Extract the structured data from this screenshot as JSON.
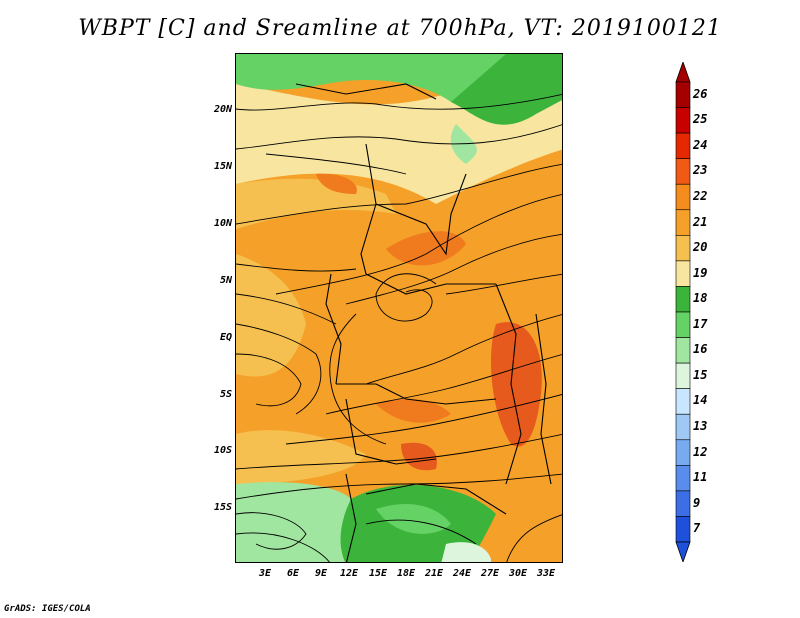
{
  "title": "WBPT [C] and Sreamline at 700hPa, VT: 2019100121",
  "footer": "GrADS: IGES/COLA",
  "lat_labels": [
    "20N",
    "15N",
    "10N",
    "5N",
    "EQ",
    "5S",
    "10S",
    "15S"
  ],
  "lon_labels": [
    "3E",
    "6E",
    "9E",
    "12E",
    "15E",
    "18E",
    "21E",
    "24E",
    "27E",
    "30E",
    "33E"
  ],
  "colorbar": {
    "labels": [
      "26",
      "25",
      "24",
      "23",
      "22",
      "21",
      "20",
      "19",
      "18",
      "17",
      "16",
      "15",
      "14",
      "13",
      "12",
      "11",
      "9",
      "7"
    ],
    "colors": [
      "#a50000",
      "#c80000",
      "#e62800",
      "#f05a14",
      "#f58c1e",
      "#f5a028",
      "#f5c050",
      "#f8e6a0",
      "#3cb43c",
      "#64d264",
      "#a0e6a0",
      "#dcf5dc",
      "#c8e6ff",
      "#a0c8f5",
      "#78aaf0",
      "#5a8ceb",
      "#3c6ee6",
      "#1e50dc"
    ]
  },
  "map_colors": {
    "orange": "#f5a028",
    "light_orange": "#f5c050",
    "pale_yellow": "#f8e6a0",
    "dark_orange": "#f07a1e",
    "red_orange": "#e65a1e",
    "green": "#64d264",
    "dark_green": "#3cb43c",
    "light_green": "#a0e6a0"
  }
}
